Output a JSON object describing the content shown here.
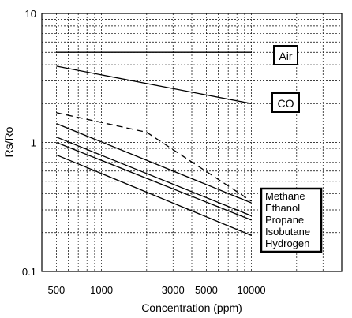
{
  "chart_data": {
    "type": "line",
    "xlabel": "Concentration (ppm)",
    "ylabel": "Rs/Ro",
    "x_scale": "log",
    "y_scale": "log",
    "xlim": [
      400,
      40000
    ],
    "ylim": [
      0.1,
      10
    ],
    "grid": true,
    "x_ticks": [
      {
        "value": 500,
        "label": "500"
      },
      {
        "value": 1000,
        "label": "1000"
      },
      {
        "value": 3000,
        "label": "3000"
      },
      {
        "value": 5000,
        "label": "5000"
      },
      {
        "value": 10000,
        "label": "10000"
      }
    ],
    "y_ticks": [
      {
        "value": 0.1,
        "label": "0.1"
      },
      {
        "value": 1,
        "label": "1"
      },
      {
        "value": 10,
        "label": "10"
      }
    ],
    "series": [
      {
        "name": "Air",
        "x": [
          500,
          10000
        ],
        "y": [
          5.0,
          5.0
        ],
        "dash": false
      },
      {
        "name": "CO",
        "x": [
          500,
          10000
        ],
        "y": [
          3.9,
          2.0
        ],
        "dash": false
      },
      {
        "name": "Methane",
        "x": [
          500,
          2000,
          10000
        ],
        "y": [
          1.7,
          1.2,
          0.35
        ],
        "dash": true
      },
      {
        "name": "Ethanol",
        "x": [
          500,
          10000
        ],
        "y": [
          1.4,
          0.34
        ],
        "dash": false
      },
      {
        "name": "Propane",
        "x": [
          500,
          10000
        ],
        "y": [
          1.1,
          0.27
        ],
        "dash": false
      },
      {
        "name": "Isobutane",
        "x": [
          500,
          10000
        ],
        "y": [
          1.0,
          0.25
        ],
        "dash": false
      },
      {
        "name": "Hydrogen",
        "x": [
          500,
          10000
        ],
        "y": [
          0.8,
          0.19
        ],
        "dash": false
      }
    ],
    "labels": {
      "air": "Air",
      "co": "CO",
      "group": [
        "Methane",
        "Ethanol",
        "Propane",
        "Isobutane",
        "Hydrogen"
      ]
    },
    "colors": {
      "line": "#000000",
      "grid": "#000000",
      "background": "#ffffff"
    }
  }
}
